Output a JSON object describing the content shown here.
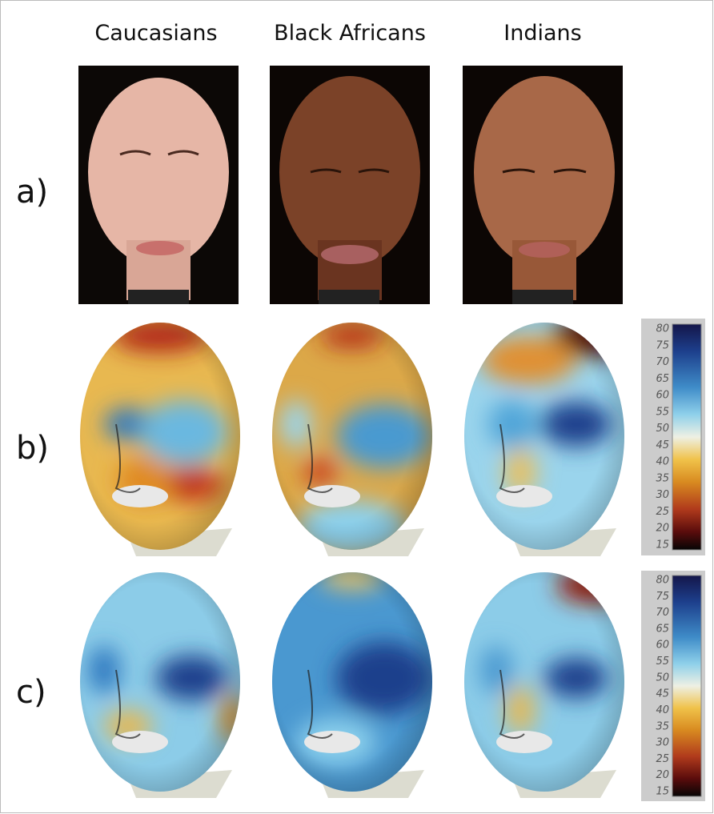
{
  "columns": [
    "Caucasians",
    "Black Africans",
    "Indians"
  ],
  "rows": [
    "a)",
    "b)",
    "c)"
  ],
  "colorbars": [
    {
      "ticks": [
        80,
        75,
        70,
        65,
        60,
        55,
        50,
        45,
        40,
        35,
        30,
        25,
        20,
        15
      ]
    },
    {
      "ticks": [
        80,
        75,
        70,
        65,
        60,
        55,
        50,
        45,
        40,
        35,
        30,
        25,
        20,
        15
      ]
    }
  ]
}
